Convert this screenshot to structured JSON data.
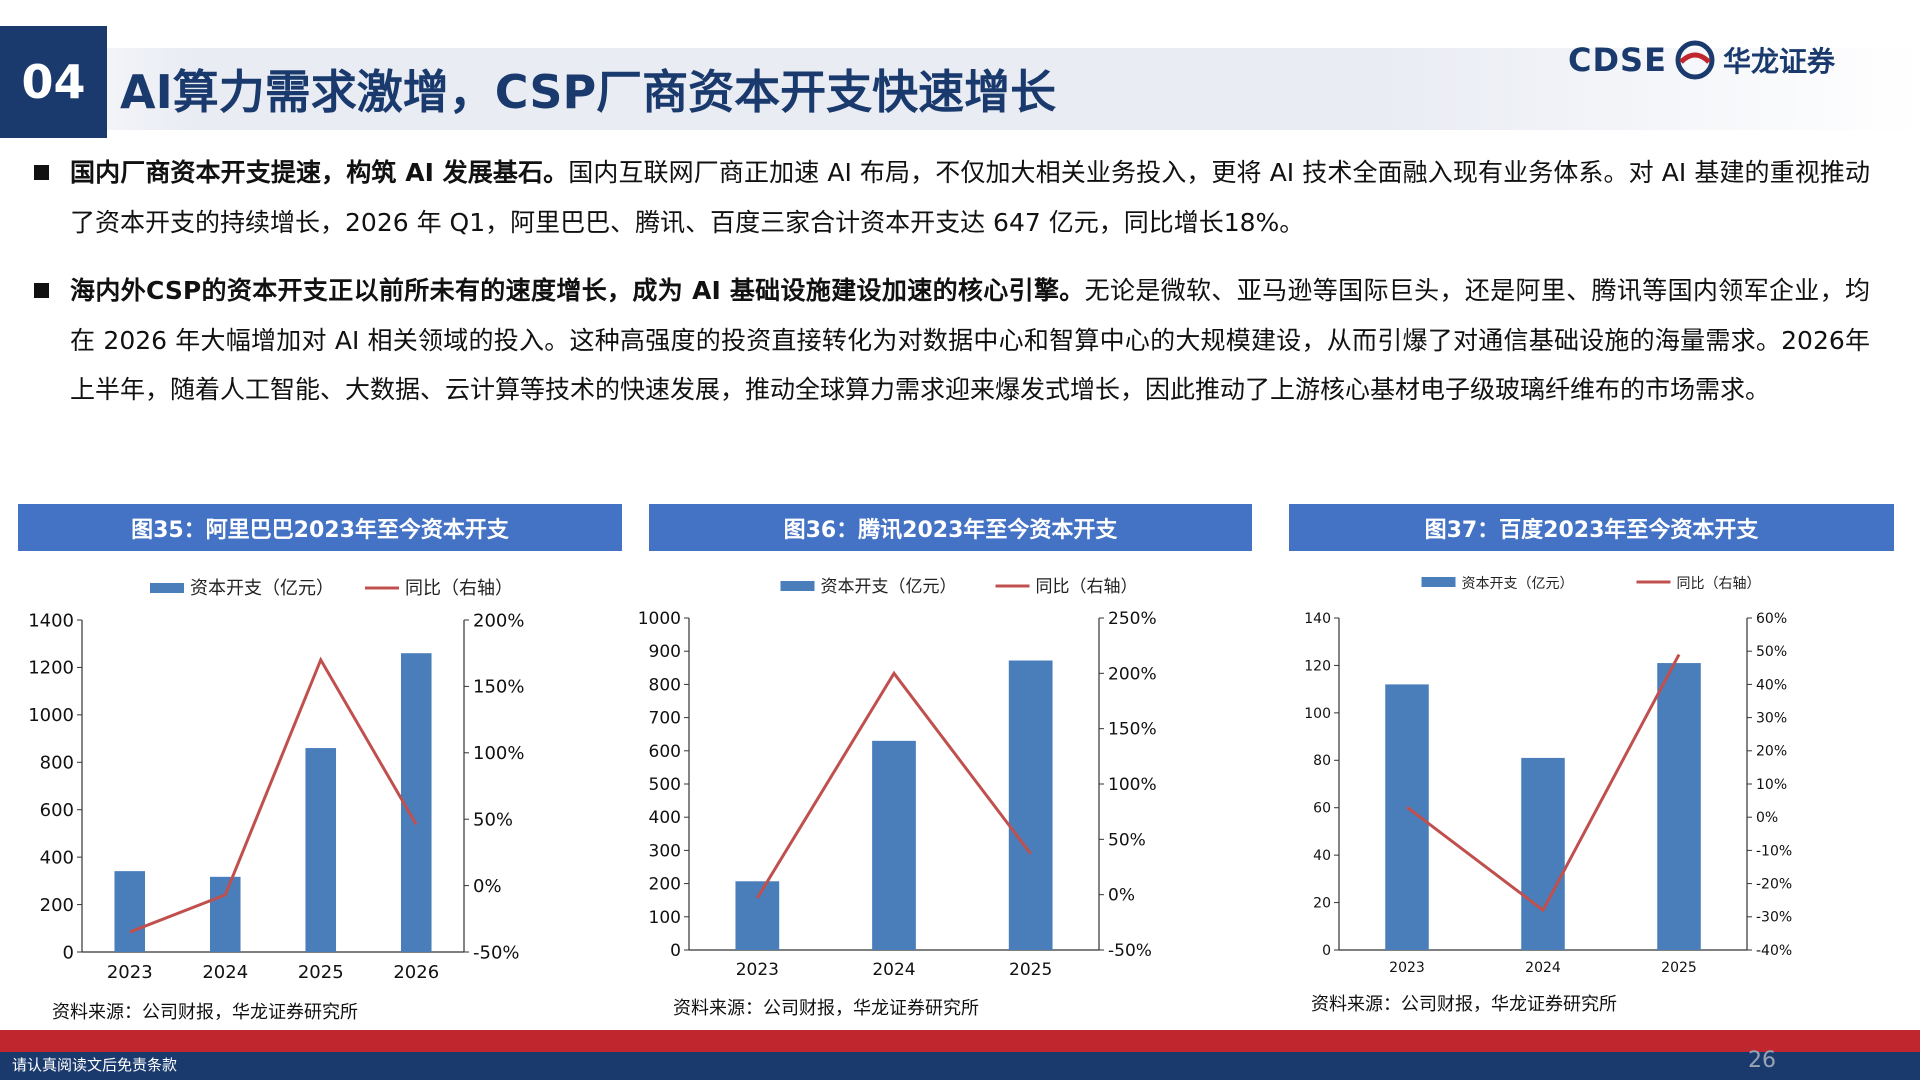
{
  "header": {
    "section_number": "04",
    "title": "AI算力需求激增，CSP厂商资本开支快速增长",
    "logo_latin": "CDSE",
    "logo_cn": "华龙证券"
  },
  "paragraphs": [
    {
      "bold": "国内厂商资本开支提速，构筑 AI 发展基石。",
      "text": "国内互联网厂商正加速 AI 布局，不仅加大相关业务投入，更将 AI 技术全面融入现有业务体系。对 AI 基建的重视推动了资本开支的持续增长，2026 年 Q1，阿里巴巴、腾讯、百度三家合计资本开支达 647 亿元，同比增长18%。"
    },
    {
      "bold": "海内外CSP的资本开支正以前所未有的速度增长，成为 AI 基础设施建设加速的核心引擎。",
      "text": "无论是微软、亚马逊等国际巨头，还是阿里、腾讯等国内领军企业，均在 2026 年大幅增加对 AI 相关领域的投入。这种高强度的投资直接转化为对数据中心和智算中心的大规模建设，从而引爆了对通信基础设施的海量需求。2026年上半年，随着人工智能、大数据、云计算等技术的快速发展，推动全球算力需求迎来爆发式增长，因此推动了上游核心基材电子级玻璃纤维布的市场需求。"
    }
  ],
  "legend": {
    "bar": "资本开支（亿元）",
    "line": "同比（右轴）"
  },
  "colors": {
    "bar": "#4a7ebb",
    "line": "#c0504d",
    "header": "#4472c4",
    "navy": "#1a3a6e",
    "red": "#c0262d"
  },
  "chart_data": [
    {
      "type": "bar",
      "title": "图35：阿里巴巴2023年至今资本开支",
      "categories": [
        "2023",
        "2024",
        "2025",
        "2026"
      ],
      "series": [
        {
          "name": "资本开支（亿元）",
          "type": "bar",
          "axis": "left",
          "values": [
            341,
            317,
            860,
            1260
          ]
        },
        {
          "name": "同比（右轴）",
          "type": "line",
          "axis": "right",
          "values": [
            -35,
            -7,
            170,
            46
          ]
        }
      ],
      "ylim": [
        0,
        1400
      ],
      "yticks": [
        "0",
        "200",
        "400",
        "600",
        "800",
        "1000",
        "1200",
        "1400"
      ],
      "y2lim": [
        -50,
        200
      ],
      "y2ticks": [
        "-50%",
        "0%",
        "50%",
        "100%",
        "150%",
        "200%"
      ],
      "source": "资料来源：公司财报，华龙证券研究所"
    },
    {
      "type": "bar",
      "title": "图36：腾讯2023年至今资本开支",
      "categories": [
        "2023",
        "2024",
        "2025"
      ],
      "series": [
        {
          "name": "资本开支（亿元）",
          "type": "bar",
          "axis": "left",
          "values": [
            207,
            630,
            872
          ]
        },
        {
          "name": "同比（右轴）",
          "type": "line",
          "axis": "right",
          "values": [
            -3,
            200,
            37
          ]
        }
      ],
      "ylim": [
        0,
        1000
      ],
      "yticks": [
        "0",
        "100",
        "200",
        "300",
        "400",
        "500",
        "600",
        "700",
        "800",
        "900",
        "1000"
      ],
      "y2lim": [
        -50,
        250
      ],
      "y2ticks": [
        "-50%",
        "0%",
        "50%",
        "100%",
        "150%",
        "200%",
        "250%"
      ],
      "source": "资料来源：公司财报，华龙证券研究所"
    },
    {
      "type": "bar",
      "title": "图37：百度2023年至今资本开支",
      "categories": [
        "2023",
        "2024",
        "2025"
      ],
      "series": [
        {
          "name": "资本开支（亿元）",
          "type": "bar",
          "axis": "left",
          "values": [
            112,
            81,
            121
          ]
        },
        {
          "name": "同比（右轴）",
          "type": "line",
          "axis": "right",
          "values": [
            3,
            -28,
            49
          ]
        }
      ],
      "ylim": [
        0,
        140
      ],
      "yticks": [
        "0",
        "20",
        "40",
        "60",
        "80",
        "100",
        "120",
        "140"
      ],
      "y2lim": [
        -40,
        60
      ],
      "y2ticks": [
        "-40%",
        "-30%",
        "-20%",
        "-10%",
        "0%",
        "10%",
        "20%",
        "30%",
        "40%",
        "50%",
        "60%"
      ],
      "source": "资料来源：公司财报，华龙证券研究所"
    }
  ],
  "footer": {
    "disclaimer": "请认真阅读文后免责条款",
    "page": "26"
  }
}
